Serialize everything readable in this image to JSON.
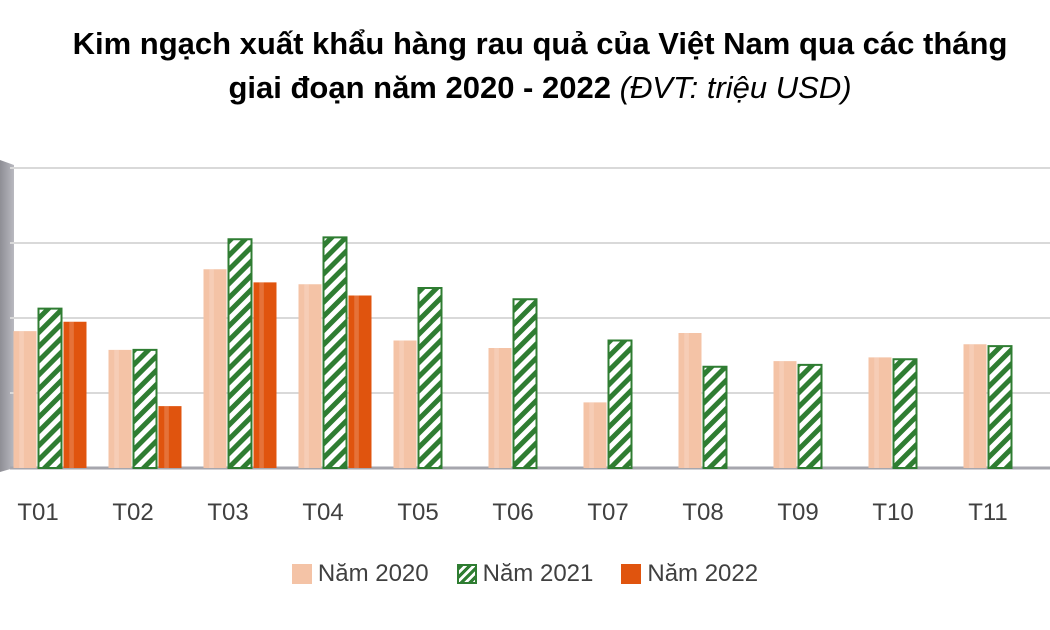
{
  "title": {
    "line1": "Kim ngạch xuất khẩu hàng rau quả của Việt Nam qua các tháng",
    "line2": "giai đoạn năm 2020 - 2022",
    "unit": "(ĐVT: triệu USD)"
  },
  "chart_data": {
    "type": "bar",
    "categories": [
      "T01",
      "T02",
      "T03",
      "T04",
      "T05",
      "T06",
      "T07",
      "T08",
      "T09",
      "T10",
      "T11"
    ],
    "series": [
      {
        "name": "Năm 2020",
        "values": [
          365,
          315,
          530,
          490,
          340,
          320,
          175,
          360,
          285,
          295,
          330
        ],
        "color": "#f4c3a6"
      },
      {
        "name": "Năm 2021",
        "values": [
          425,
          315,
          610,
          615,
          480,
          450,
          340,
          270,
          275,
          290,
          325
        ],
        "color": "#2f7d32",
        "pattern": "diagonal-hatch"
      },
      {
        "name": "Năm 2022",
        "values": [
          390,
          165,
          495,
          460,
          null,
          null,
          null,
          null,
          null,
          null,
          null
        ],
        "color": "#e0540e"
      }
    ],
    "ylim": [
      0,
      800
    ],
    "y_gridlines": [
      0,
      200,
      400,
      600,
      800
    ],
    "grid": true,
    "y_tick_labels_visible": false,
    "legend_position": "bottom"
  }
}
